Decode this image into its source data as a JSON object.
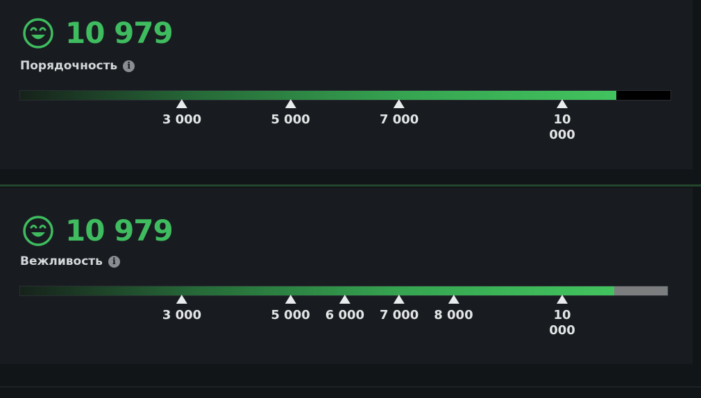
{
  "panels": [
    {
      "score": "10 979",
      "label": "Порядочность",
      "info_glyph": "i",
      "icon": "smiley-face-icon",
      "progress_fraction": 0.915,
      "rest_color": "#000000",
      "ticks": [
        {
          "value": 3000,
          "label": "3 000"
        },
        {
          "value": 5000,
          "label": "5 000"
        },
        {
          "value": 7000,
          "label": "7 000"
        },
        {
          "value": 10000,
          "label": "10 000"
        }
      ]
    },
    {
      "score": "10 979",
      "label": "Вежливость",
      "info_glyph": "i",
      "icon": "smiley-face-icon",
      "progress_fraction": 0.915,
      "rest_color": "#7c7d7f",
      "ticks": [
        {
          "value": 3000,
          "label": "3 000"
        },
        {
          "value": 5000,
          "label": "5 000"
        },
        {
          "value": 6000,
          "label": "6 000"
        },
        {
          "value": 7000,
          "label": "7 000"
        },
        {
          "value": 8000,
          "label": "8 000"
        },
        {
          "value": 10000,
          "label": "10 000"
        }
      ]
    }
  ],
  "colors": {
    "accent_green": "#3fbc5f",
    "background": "#121518",
    "panel": "#181c20"
  }
}
